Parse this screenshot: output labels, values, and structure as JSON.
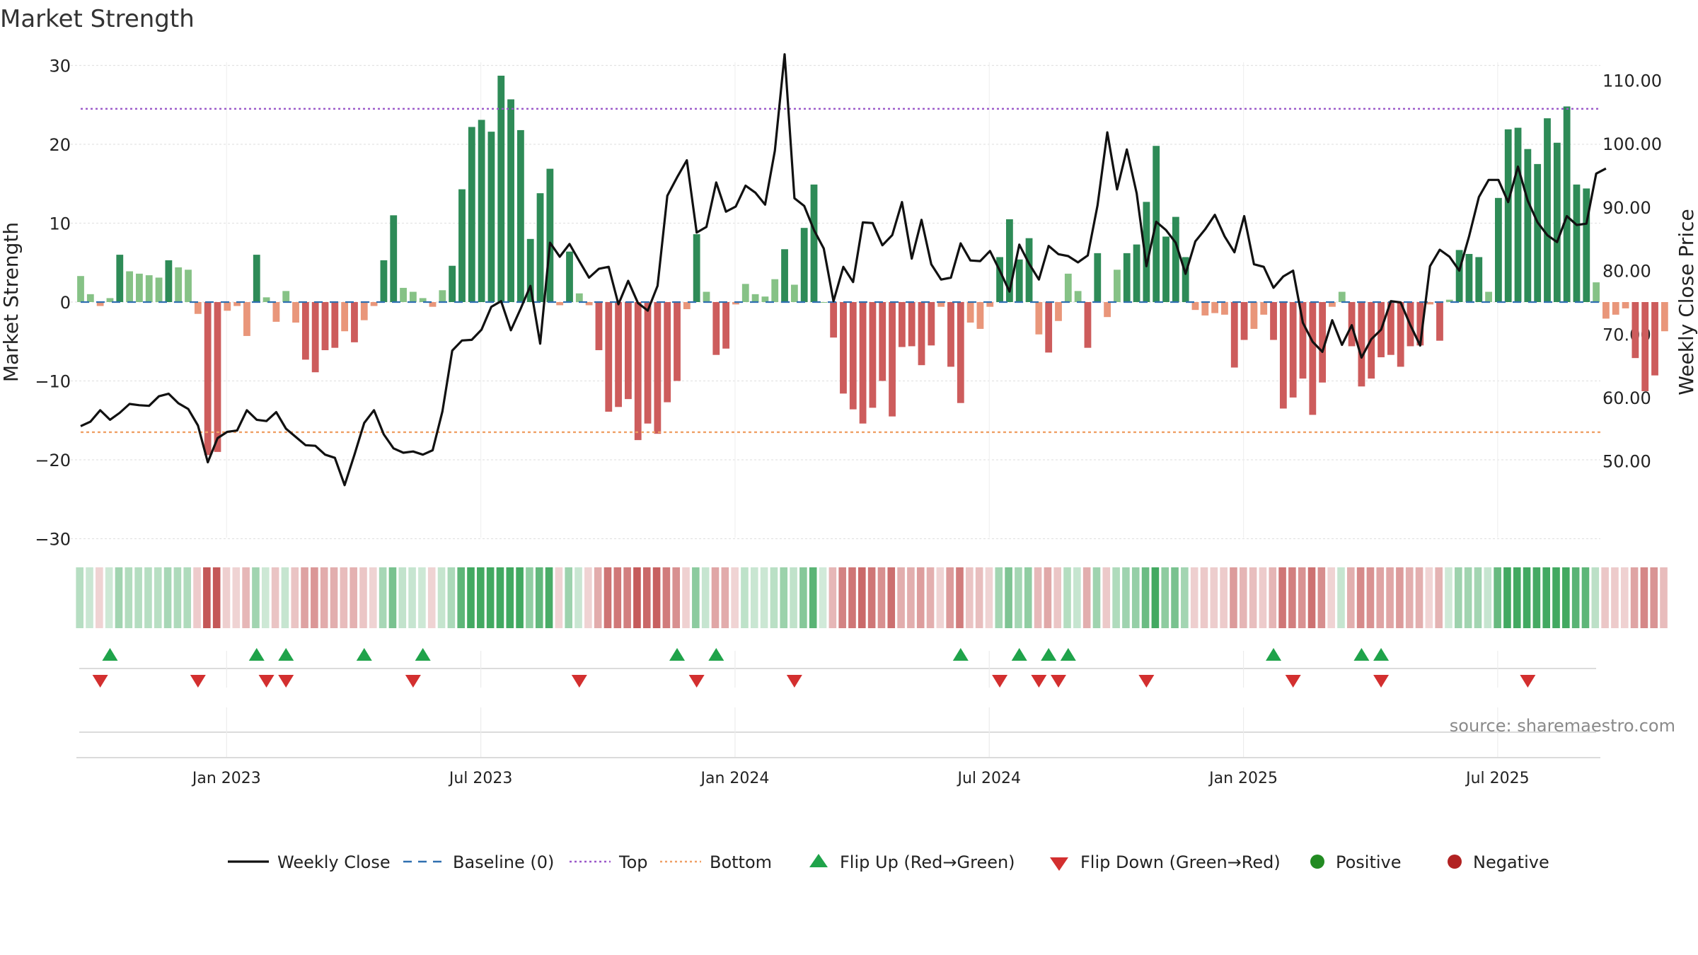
{
  "chart_data": {
    "type": "bar",
    "title": "Market Strength",
    "ylabel_left": "Market Strength",
    "ylabel_right": "Weekly Close Price",
    "source": "source: sharemaestro.com",
    "ylim_left": [
      -30,
      30
    ],
    "ylim_right": [
      40,
      116
    ],
    "left_ticks": [
      "30",
      "20",
      "10",
      "0",
      "−10",
      "−20",
      "−30"
    ],
    "left_tick_values": [
      30,
      20,
      10,
      0,
      -10,
      -20,
      -30
    ],
    "right_ticks": [
      "110.00",
      "100.00",
      "90.00",
      "80.00",
      "70.00",
      "60.00",
      "50.00"
    ],
    "right_tick_values": [
      110,
      100,
      90,
      80,
      70,
      60,
      50
    ],
    "x_ticks": [
      "Jan 2023",
      "Jul 2023",
      "Jan 2024",
      "Jul 2024",
      "Jan 2025",
      "Jul 2025"
    ],
    "x_tick_weeks": [
      15,
      41,
      67,
      93,
      119,
      145
    ],
    "top_line": 24.5,
    "bottom_line": -16.5,
    "strength": [
      3.3,
      1,
      -0.5,
      0.5,
      6,
      3.9,
      3.6,
      3.4,
      3.1,
      5.3,
      4.4,
      4.1,
      -1.5,
      -19.4,
      -19,
      -1.1,
      -0.5,
      -4.3,
      6,
      0.6,
      -2.5,
      1.4,
      -2.6,
      -7.3,
      -8.9,
      -6.1,
      -5.8,
      -3.7,
      -5.1,
      -2.3,
      -0.5,
      5.3,
      11,
      1.8,
      1.3,
      0.5,
      -0.6,
      1.5,
      4.6,
      14.3,
      22.2,
      23.1,
      21.6,
      28.7,
      25.7,
      21.8,
      8,
      13.8,
      16.9,
      -0.4,
      6.4,
      1.1,
      -0.4,
      -6.1,
      -13.9,
      -13.3,
      -12.3,
      -17.5,
      -15.4,
      -16.7,
      -12.7,
      -10,
      -0.9,
      8.6,
      1.3,
      -6.7,
      -5.9,
      -0.3,
      2.3,
      1,
      0.7,
      2.9,
      6.7,
      2.2,
      9.4,
      14.9,
      0,
      -4.5,
      -11.6,
      -13.6,
      -15.4,
      -13.4,
      -10,
      -14.5,
      -5.7,
      -5.6,
      -8,
      -5.5,
      -0.6,
      -8.2,
      -12.8,
      -2.6,
      -3.4,
      -0.6,
      5.7,
      10.5,
      5.4,
      8.1,
      -4.1,
      -6.4,
      -2.4,
      3.6,
      1.4,
      -5.8,
      6.2,
      -1.9,
      4.1,
      6.2,
      7.3,
      12.7,
      19.8,
      8.3,
      10.8,
      5.7,
      -1,
      -1.7,
      -1.4,
      -1.6,
      -8.3,
      -4.8,
      -3.4,
      -1.6,
      -4.8,
      -13.5,
      -12.1,
      -9.7,
      -14.3,
      -10.2,
      -0.6,
      1.3,
      -5.6,
      -10.7,
      -9.7,
      -7,
      -6.7,
      -8.2,
      -5.6,
      -5.5,
      -0.3,
      -4.9,
      0.3,
      6.6,
      6.1,
      5.7,
      1.3,
      13.2,
      21.9,
      22.1,
      19.4,
      17.5,
      23.3,
      20.2,
      24.8,
      14.9,
      14.4,
      2.5,
      -2.1,
      -1.6,
      -0.8,
      -7.1,
      -11.3,
      -9.3,
      -3.7
    ],
    "close": [
      55.5,
      56.2,
      58,
      56.5,
      57.6,
      59,
      58.8,
      58.7,
      60.2,
      60.6,
      59.1,
      58.2,
      55.6,
      49.8,
      53.6,
      54.6,
      54.8,
      58,
      56.5,
      56.3,
      57.7,
      55.1,
      53.8,
      52.5,
      52.4,
      51,
      50.5,
      46.2,
      51,
      56,
      58,
      54.2,
      52,
      51.3,
      51.5,
      51,
      51.7,
      57.8,
      67.4,
      69,
      69.1,
      70.7,
      74.3,
      75.2,
      70.6,
      74,
      77.6,
      68.5,
      84.4,
      82.2,
      84.2,
      81.5,
      78.9,
      80.3,
      80.6,
      74.7,
      78.4,
      74.9,
      73.7,
      77.6,
      91.8,
      94.7,
      97.4,
      86,
      86.9,
      93.9,
      89.3,
      90.1,
      93.4,
      92.3,
      90.4,
      98.9,
      114.1,
      91.4,
      90.2,
      86.4,
      83.5,
      75.2,
      80.6,
      78.2,
      87.6,
      87.5,
      84,
      85.6,
      90.8,
      81.9,
      88,
      81,
      78.6,
      78.9,
      84.3,
      81.6,
      81.5,
      83.1,
      80,
      76.7,
      84.1,
      81.1,
      78.6,
      83.9,
      82.6,
      82.3,
      81.3,
      82.4,
      90.3,
      101.8,
      92.8,
      99.1,
      92.2,
      80.7,
      87.7,
      86.4,
      84.4,
      79.5,
      84.6,
      86.5,
      88.8,
      85.4,
      82.9,
      88.6,
      81,
      80.6,
      77.3,
      79.1,
      80,
      71.8,
      68.8,
      67.2,
      72.2,
      68.3,
      71.4,
      66.3,
      69.2,
      70.7,
      75.2,
      75,
      71.4,
      68.2,
      80.7,
      83.3,
      82.2,
      80,
      85.4,
      91.6,
      94.3,
      94.3,
      90.8,
      96.4,
      91,
      87.6,
      85.6,
      84.5,
      88.6,
      87.2,
      87.4,
      95.3,
      96.1
    ],
    "flips_up": [
      3,
      18,
      21,
      29,
      35,
      61,
      65,
      90,
      96,
      99,
      101,
      122,
      131,
      133
    ],
    "flips_down": [
      2,
      12,
      19,
      21,
      34,
      51,
      63,
      73,
      94,
      98,
      100,
      109,
      124,
      133,
      148
    ],
    "legend": [
      {
        "label": "Weekly Close",
        "kind": "line",
        "color": "#111111"
      },
      {
        "label": "Baseline (0)",
        "kind": "dash",
        "color": "#2f6fb0"
      },
      {
        "label": "Top",
        "kind": "dot",
        "color": "#9b59c9"
      },
      {
        "label": "Bottom",
        "kind": "dot",
        "color": "#f0a066"
      },
      {
        "label": "Flip Up (Red→Green)",
        "kind": "tri-up",
        "color": "#1fa34a"
      },
      {
        "label": "Flip Down (Green→Red)",
        "kind": "tri-down",
        "color": "#d32f2f"
      },
      {
        "label": "Positive",
        "kind": "circle",
        "color": "#228b22"
      },
      {
        "label": "Negative",
        "kind": "circle",
        "color": "#b22222"
      }
    ],
    "colors": {
      "pos_strong": "#2e8b57",
      "pos_weak": "#86c286",
      "neg_strong": "#cd5c5c",
      "neg_weak": "#e9967a",
      "baseline": "#2f6fb0",
      "top": "#9b59c9",
      "bottom": "#f0a066",
      "close": "#111111",
      "grid": "#e3e3e3"
    }
  }
}
